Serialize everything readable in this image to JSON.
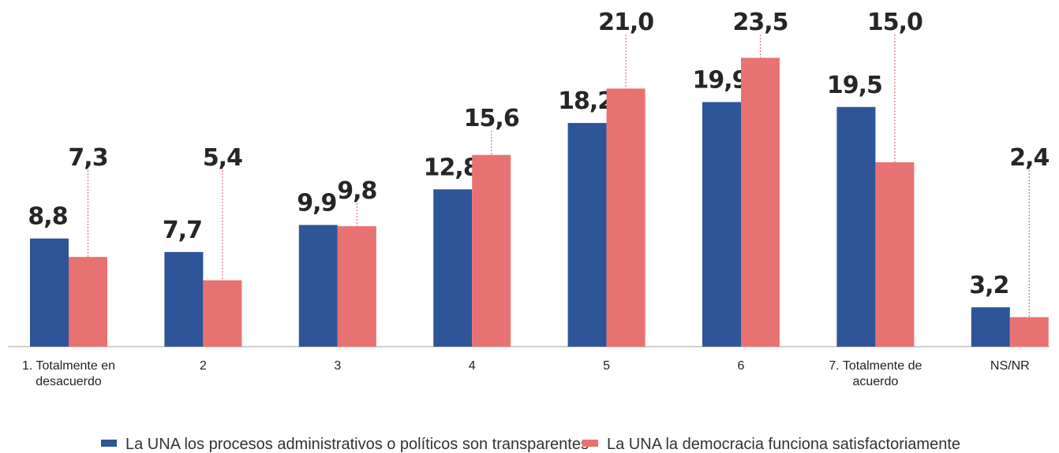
{
  "chart_data": {
    "type": "bar",
    "categories": [
      "1. Totalmente en desacuerdo",
      "2",
      "3",
      "4",
      "5",
      "6",
      "7. Totalmente  de acuerdo",
      "NS/NR"
    ],
    "series": [
      {
        "name": "La UNA los procesos administrativos o políticos son transparentes",
        "color": "#2e5597",
        "values": [
          8.8,
          7.7,
          9.9,
          12.8,
          18.2,
          19.9,
          19.5,
          3.2
        ],
        "value_labels": [
          "8,8",
          "7,7",
          "9,9",
          "12,8",
          "18,2",
          "19,9",
          "19,5",
          "3,2"
        ]
      },
      {
        "name": "La UNA la democracia funciona satisfactoriamente",
        "color": "#e87272",
        "values": [
          7.3,
          5.4,
          9.8,
          15.6,
          21.0,
          23.5,
          15.0,
          2.4
        ],
        "value_labels": [
          "7,3",
          "5,4",
          "9,8",
          "15,6",
          "21,0",
          "23,5",
          "15,0",
          "2,4"
        ]
      }
    ],
    "legend": "bottom"
  }
}
